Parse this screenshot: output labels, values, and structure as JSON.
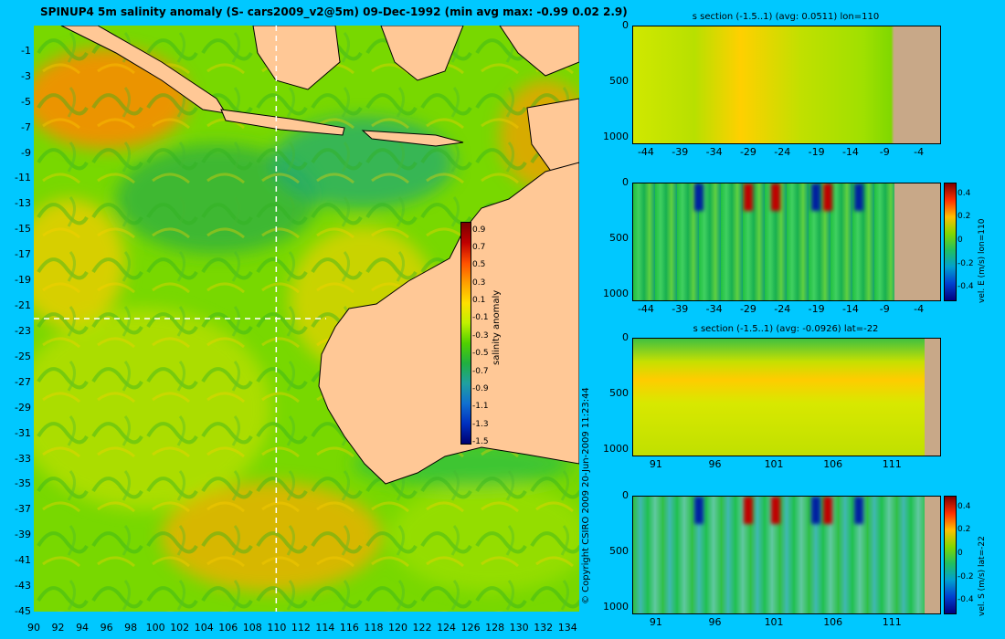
{
  "main_title": "SPINUP4 5m salinity anomaly (S- cars2009_v2@5m) 09-Dec-1992 (min avg max: -0.99 0.02 2.9)",
  "map": {
    "x_ticks": [
      "90",
      "92",
      "94",
      "96",
      "98",
      "100",
      "102",
      "104",
      "106",
      "108",
      "110",
      "112",
      "114",
      "116",
      "118",
      "120",
      "122",
      "124",
      "126",
      "128",
      "130",
      "132",
      "134"
    ],
    "y_ticks": [
      "-1",
      "-3",
      "-5",
      "-7",
      "-9",
      "-11",
      "-13",
      "-15",
      "-17",
      "-19",
      "-21",
      "-23",
      "-25",
      "-27",
      "-29",
      "-31",
      "-33",
      "-35",
      "-37",
      "-39",
      "-41",
      "-43",
      "-45"
    ],
    "lon_range": [
      90,
      135
    ],
    "lat_range": [
      -45,
      1
    ],
    "crosshair_lon": 110,
    "crosshair_lat": -22,
    "colors": {
      "ocean_base": "#78d800",
      "land": "#ffc896"
    }
  },
  "colorbar": {
    "label": "salinity anomaly",
    "ticks": [
      "0.9",
      "0.7",
      "0.5",
      "0.3",
      "0.1",
      "-0.1",
      "-0.3",
      "-0.5",
      "-0.7",
      "-0.9",
      "-1.1",
      "-1.3",
      "-1.5"
    ],
    "range": [
      -1.5,
      1.0
    ]
  },
  "panels": [
    {
      "title": "s section (-1.5..1) (avg: 0.0511) lon=110",
      "x_ticks": [
        "-44",
        "-39",
        "-34",
        "-29",
        "-24",
        "-19",
        "-14",
        "-9",
        "-4"
      ],
      "y_ticks": [
        "0",
        "500",
        "1000"
      ],
      "has_colorbar": false
    },
    {
      "title": "",
      "x_ticks": [
        "-44",
        "-39",
        "-34",
        "-29",
        "-24",
        "-19",
        "-14",
        "-9",
        "-4"
      ],
      "y_ticks": [
        "0",
        "500",
        "1000"
      ],
      "has_colorbar": true,
      "cbar_label": "vel. E (m/s) lon=110",
      "cbar_ticks": [
        "0.4",
        "0.2",
        "0",
        "-0.2",
        "-0.4"
      ]
    },
    {
      "title": "s section (-1.5..1) (avg: -0.0926) lat=-22",
      "x_ticks": [
        "91",
        "96",
        "101",
        "106",
        "111"
      ],
      "y_ticks": [
        "0",
        "500",
        "1000"
      ],
      "has_colorbar": false
    },
    {
      "title": "",
      "x_ticks": [
        "91",
        "96",
        "101",
        "106",
        "111"
      ],
      "y_ticks": [
        "0",
        "500",
        "1000"
      ],
      "has_colorbar": true,
      "cbar_label": "vel. S (m/s) lat=-22",
      "cbar_ticks": [
        "0.4",
        "0.2",
        "0",
        "-0.2",
        "-0.4"
      ]
    }
  ],
  "copyright": "© Copyright CSIRO 2009   20-Jun-2009 11:23:44"
}
